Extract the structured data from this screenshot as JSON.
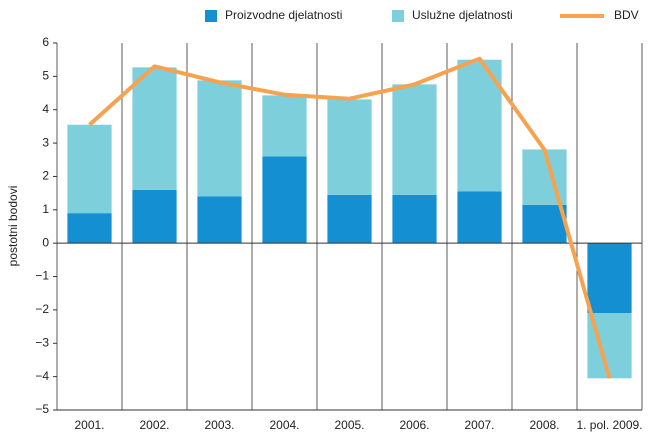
{
  "chart_data": {
    "type": "bar",
    "y_label": "postotni bodovi",
    "categories": [
      "2001.",
      "2002.",
      "2003.",
      "2004.",
      "2005.",
      "2006.",
      "2007.",
      "2008.",
      "1. pol. 2009."
    ],
    "series": [
      {
        "name": "Proizvodne djelatnosti",
        "color": "#1490d2",
        "values": [
          0.9,
          1.6,
          1.4,
          2.6,
          1.45,
          1.45,
          1.55,
          1.15,
          -2.1
        ]
      },
      {
        "name": "Uslužne djelatnosti",
        "color": "#7dcfdc",
        "values": [
          2.65,
          3.67,
          3.48,
          1.83,
          2.86,
          3.31,
          3.95,
          1.66,
          -1.95
        ]
      },
      {
        "name": "BDV",
        "color": "#f7a24f",
        "type": "line",
        "values": [
          3.55,
          5.3,
          4.82,
          4.45,
          4.33,
          4.76,
          5.53,
          2.8,
          -4.05
        ]
      }
    ],
    "ylim": [
      -5,
      6
    ],
    "yticks": [
      {
        "value": -5,
        "label": "−5"
      },
      {
        "value": -4,
        "label": "−4"
      },
      {
        "value": -3,
        "label": "−3"
      },
      {
        "value": -2,
        "label": "−2"
      },
      {
        "value": -1,
        "label": "−1"
      },
      0,
      1,
      2,
      3,
      4,
      5,
      6
    ],
    "legend": "top"
  }
}
